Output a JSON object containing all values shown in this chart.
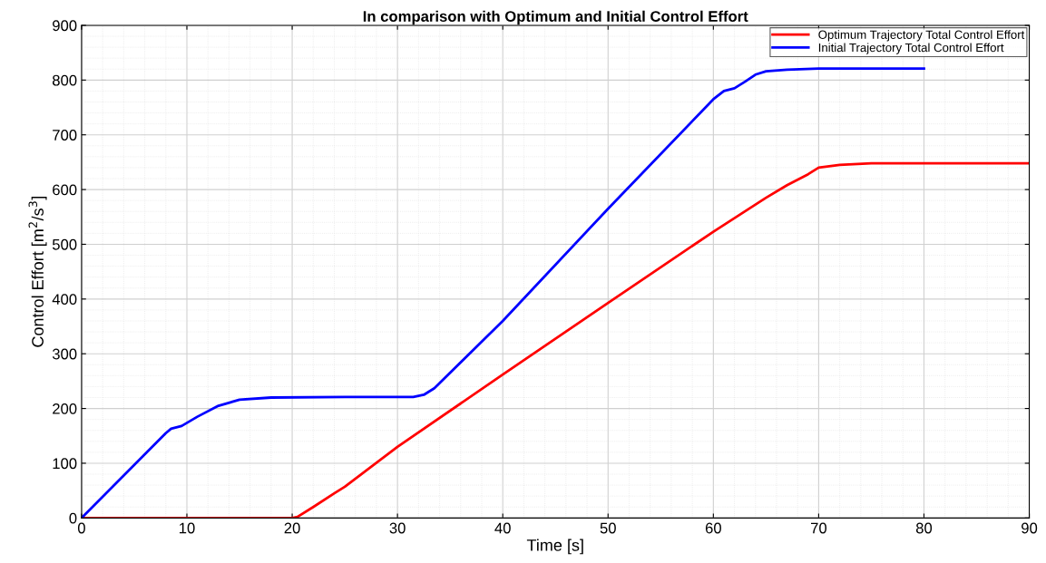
{
  "chart_data": {
    "type": "line",
    "title": "In comparison with Optimum and Initial Control Effort",
    "xlabel": "Time [s]",
    "ylabel": "Control Effort [m$^{2}$/s$^{3}$]",
    "xlim": [
      0,
      90
    ],
    "xticks": [
      0,
      10,
      20,
      30,
      40,
      50,
      60,
      70,
      80,
      90
    ],
    "ylim": [
      0,
      900
    ],
    "yticks": [
      0,
      100,
      200,
      300,
      400,
      500,
      600,
      700,
      800,
      900
    ],
    "grid": true,
    "legend": "top right",
    "marker": "none",
    "line_style": "solid",
    "series": [
      {
        "name": "Optimum Trajectory Total Control Effort",
        "color": "#ff0000",
        "x": [
          0,
          20,
          20.5,
          22,
          24,
          25,
          30,
          40,
          50,
          60,
          65,
          67,
          68,
          69,
          70,
          72,
          75,
          90
        ],
        "values": [
          0,
          0,
          2,
          20,
          45,
          57,
          130,
          262,
          393,
          523,
          585,
          608,
          618,
          628,
          640,
          645,
          648,
          648
        ]
      },
      {
        "name": "Initial Trajectory Total Control Effort",
        "color": "#0000ff",
        "x": [
          0,
          8,
          8.5,
          9.5,
          11,
          13,
          15,
          18,
          25,
          31.5,
          32.5,
          33.5,
          40,
          50,
          60,
          61,
          62,
          63,
          64,
          65,
          67,
          70,
          80
        ],
        "values": [
          0,
          155,
          163,
          168,
          185,
          205,
          216,
          220,
          221,
          221,
          225,
          237,
          360,
          565,
          765,
          780,
          785,
          797,
          810,
          816,
          819,
          821,
          821
        ]
      }
    ]
  }
}
